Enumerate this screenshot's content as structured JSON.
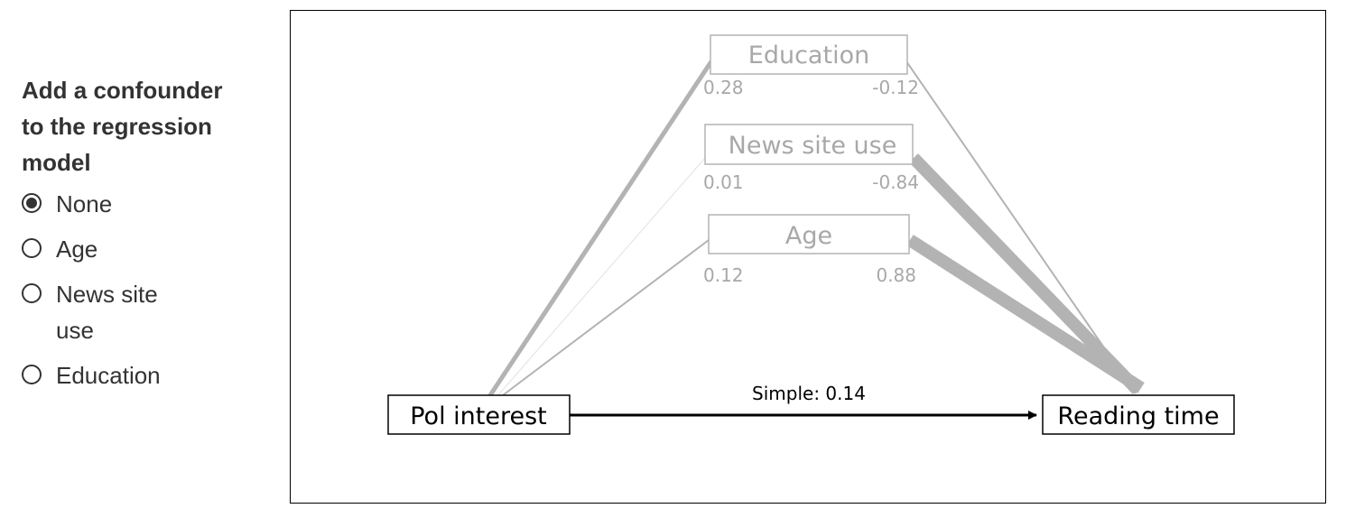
{
  "sidebar": {
    "title": "Add a confounder to the regression model",
    "options": [
      {
        "label": "None",
        "checked": true
      },
      {
        "label": "Age",
        "checked": false
      },
      {
        "label": "News site use",
        "checked": false
      },
      {
        "label": "Education",
        "checked": false
      }
    ]
  },
  "diagram": {
    "exposure": "Pol interest",
    "outcome": "Reading time",
    "simple_label": "Simple: 0.14",
    "confounders": [
      {
        "name": "Education",
        "coef_exposure": "0.28",
        "coef_outcome": "-0.12"
      },
      {
        "name": "News site use",
        "coef_exposure": "0.01",
        "coef_outcome": "-0.84"
      },
      {
        "name": "Age",
        "coef_exposure": "0.12",
        "coef_outcome": "0.88"
      }
    ],
    "colors": {
      "faded": "#b3b3b3",
      "text_faded": "#a8a8a8",
      "main": "#000000"
    }
  }
}
